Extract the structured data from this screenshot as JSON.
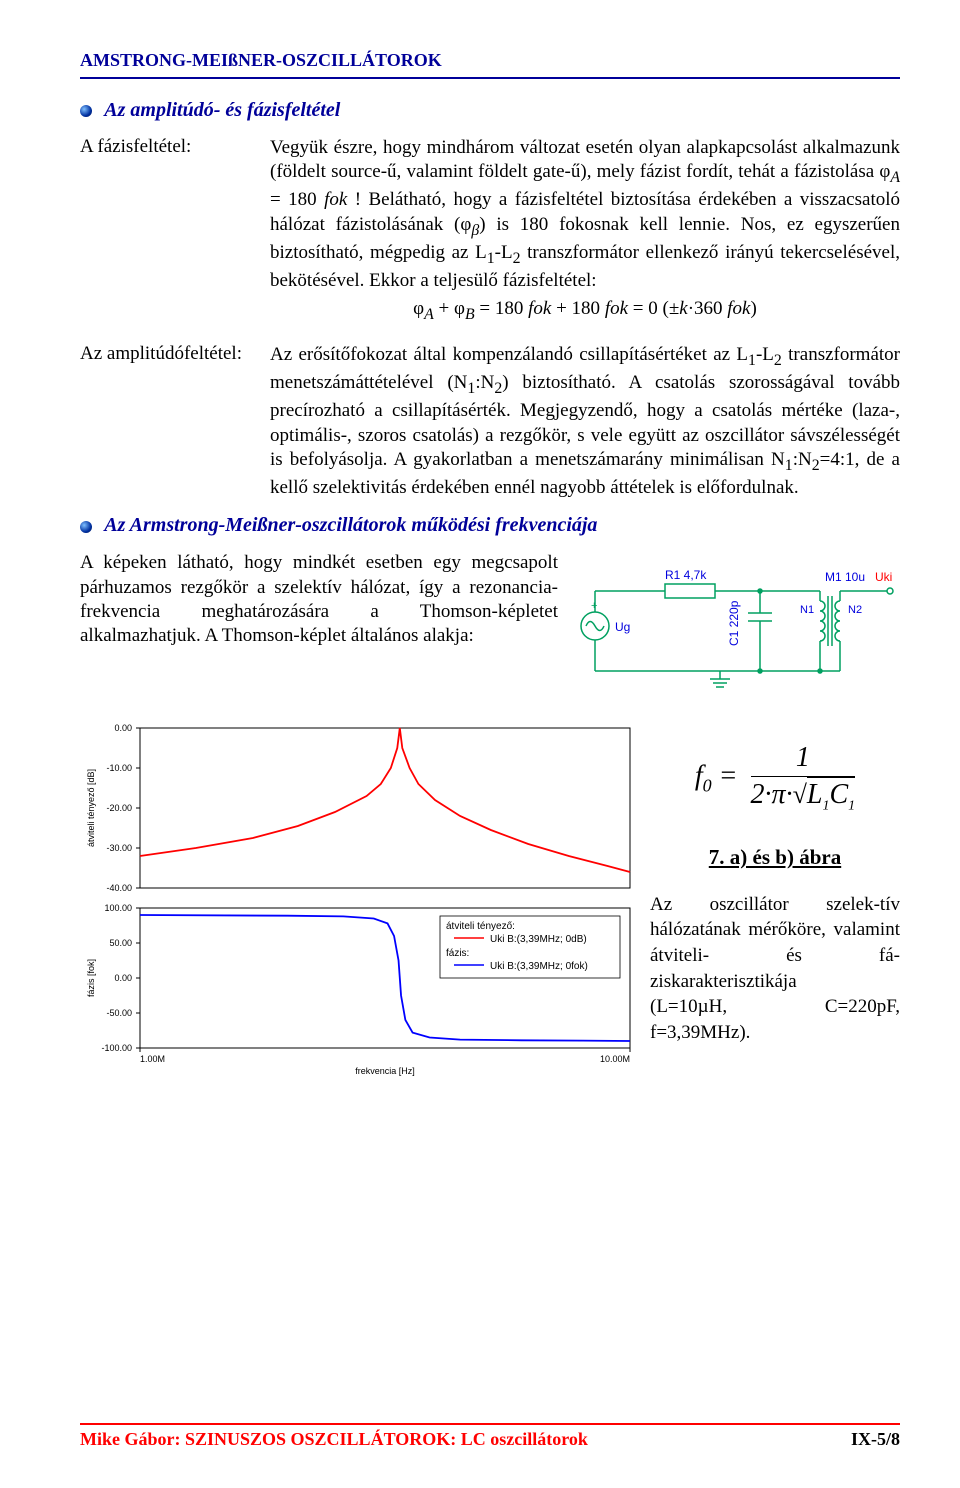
{
  "header": {
    "title": "AMSTRONG-MEIßNER-OSZCILLÁTOROK"
  },
  "sec1": {
    "title": "Az amplitúdó- és fázisfeltétel"
  },
  "phase": {
    "label": "A fázisfeltétel:",
    "body1": "Vegyük észre, hogy mindhárom változat esetén olyan alapkapcsolást alkalmazunk (földelt source-ű, valamint földelt gate-ű), mely fázist fordít, tehát a fázistolása ",
    "phi_a": "φ",
    "sub_a": "A",
    "eq1": " = 180 ",
    "fok": "fok",
    "body2": " ! Belátható, hogy a fázisfeltétel biztosítása érdekében a visszacsatoló hálózat fázistolásának ",
    "phi_b_par": "(φ",
    "sub_b": "β",
    "close_par": ")",
    "body3": " is 180 fokosnak kell lennie. Nos, ez egyszerűen biztosítható, mégpedig az L",
    "s1": "1",
    "dash": "-L",
    "s2": "2",
    "body4": " transzformátor ellenkező irányú tekercselésével, bekötésével. Ekkor a teljesülő fázisfeltétel:",
    "formula": "φ_A + φ_B = 180 fok + 180 fok = 0 (±k·360 fok)"
  },
  "amp": {
    "label": "Az amplitúdófeltétel:",
    "body1": "Az erősítőfokozat által kompenzálandó csillapításértéket az L",
    "s1": "1",
    "dash": "-L",
    "s2": "2",
    "body2": " transzformátor menetszámáttételével (N",
    "n1": "1",
    "colon": ":N",
    "n2": "2",
    "body3": ") biztosítható. A csatolás szorosságával tovább precírozható a csillapításérték. Megjegyzendő, hogy a csatolás mértéke (laza-, optimális-, szoros csatolás) a rezgőkör, s vele együtt az oszcillátor sávszélességét is befolyásolja. A gyakorlatban a menetszámarány minimálisan N",
    "n1b": "1",
    "colon2": ":N",
    "n2b": "2",
    "body4": "=4:1, de a kellő szelektivitás érdekében ennél nagyobb áttételek is előfordulnak."
  },
  "sec2": {
    "title": "Az Armstrong-Meißner-oszcillátorok működési frekvenciája"
  },
  "freq": {
    "text": "A képeken látható, hogy mindkét esetben egy megcsapolt párhuzamos rezgőkör a szelektív hálózat, így a rezonancia-frekvencia meghatározására a Thomson-képletet alkalmazhatjuk. A Thomson-képlet általános alakja:"
  },
  "circuit": {
    "R1": "R1 4,7k",
    "M1": "M1 10u",
    "Uki": "Uki",
    "N1": "N1",
    "N2": "N2",
    "C1": "C1 220p",
    "Ug": "Ug",
    "colors": {
      "wire": "#00a060",
      "label": "#0000dd"
    }
  },
  "formula_f0": {
    "lhs": "f",
    "sub0": "0",
    "eq": "=",
    "num": "1",
    "den": "2·π·√(L₁C₁)"
  },
  "fig_label": "7. a) és b) ábra",
  "side_text": {
    "l1": "Az oszcillátor szelek-tív hálózatának mérőköre, valamint átviteli- és fá-ziskarakterisztikája",
    "l2": "(L=10µH,",
    "l3": "C=220pF,",
    "l4": "f=3,39MHz)."
  },
  "gain_chart": {
    "type": "line",
    "ylabel": "átviteli tényező [dB]",
    "ylim": [
      -40,
      0
    ],
    "yticks": [
      0,
      -10,
      -20,
      -30,
      -40
    ],
    "ytick_labels": [
      "0.00",
      "-10.00",
      "-20.00",
      "-30.00",
      "-40.00"
    ],
    "line_color": "#ff0000",
    "background": "#ffffff",
    "grid_color": "#ffffff",
    "data_x": [
      1.0,
      1.3,
      1.7,
      2.1,
      2.5,
      2.9,
      3.1,
      3.25,
      3.35,
      3.39,
      3.43,
      3.55,
      3.7,
      4.0,
      4.5,
      5.2,
      6.2,
      7.5,
      9.0,
      10.0
    ],
    "data_y": [
      -32,
      -30,
      -27.5,
      -24.5,
      -21,
      -17,
      -14,
      -10,
      -5,
      0,
      -5,
      -10,
      -14,
      -18,
      -22,
      -25.5,
      -29,
      -32,
      -34.5,
      -36
    ]
  },
  "phase_chart": {
    "type": "line",
    "ylabel": "fázis [fok]",
    "xlabel": "frekvencia [Hz]",
    "ylim": [
      -100,
      100
    ],
    "yticks": [
      100,
      50,
      0,
      -50,
      -100
    ],
    "ytick_labels": [
      "100.00",
      "50.00",
      "0.00",
      "-50.00",
      "-100.00"
    ],
    "xticks": [
      1.0,
      10.0
    ],
    "xtick_labels": [
      "1.00M",
      "10.00M"
    ],
    "line_color": "#0000ff",
    "background": "#ffffff",
    "legend": {
      "title1": "átviteli tényező:",
      "item1": "Uki  B:(3,39MHz; 0dB)",
      "title2": "fázis:",
      "item2": "Uki  B:(3,39MHz; 0fok)"
    },
    "data_x": [
      1.0,
      2.0,
      2.6,
      3.0,
      3.2,
      3.3,
      3.37,
      3.39,
      3.41,
      3.48,
      3.6,
      3.9,
      4.5,
      6.0,
      8.0,
      10.0
    ],
    "data_y": [
      90,
      89,
      88,
      85,
      78,
      60,
      25,
      0,
      -25,
      -60,
      -78,
      -85,
      -88,
      -89,
      -89.5,
      -90
    ]
  },
  "footer": {
    "left": "Mike Gábor: SZINUSZOS OSZCILLÁTOROK: LC oszcillátorok",
    "right": "IX-5/8"
  }
}
